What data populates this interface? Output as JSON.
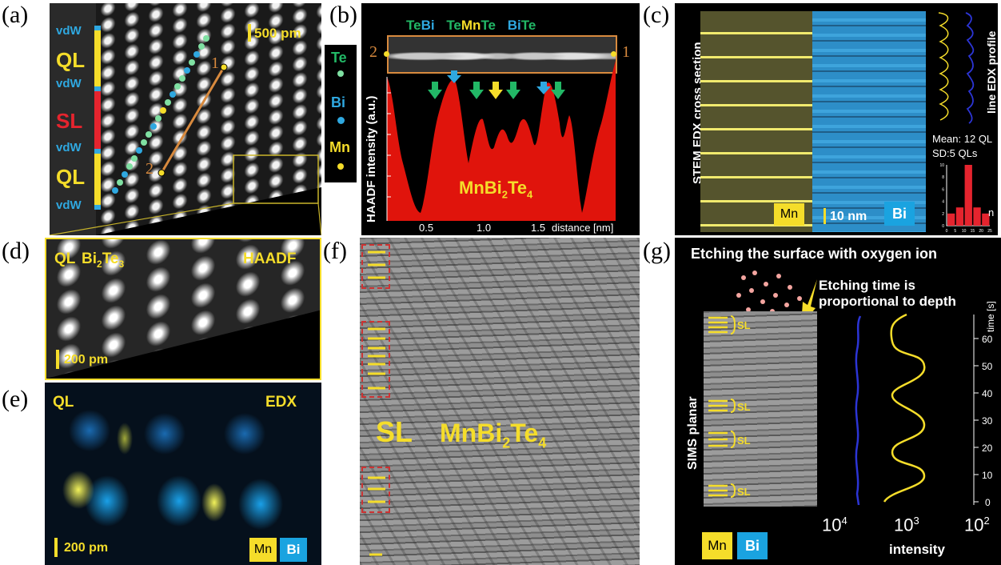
{
  "labels": {
    "a": "(a)",
    "b": "(b)",
    "c": "(c)",
    "d": "(d)",
    "e": "(e)",
    "f": "(f)",
    "g": "(g)"
  },
  "panel_a": {
    "layers": [
      {
        "text": "vdW",
        "kind": "vdw"
      },
      {
        "text": "QL",
        "kind": "ql"
      },
      {
        "text": "vdW",
        "kind": "vdw"
      },
      {
        "text": "SL",
        "kind": "sl"
      },
      {
        "text": "vdW",
        "kind": "vdw"
      },
      {
        "text": "QL",
        "kind": "ql"
      },
      {
        "text": "vdW",
        "kind": "vdw"
      }
    ],
    "scale_bar": "500 pm",
    "marker_1": "1",
    "marker_2": "2",
    "colors": {
      "ql": "#f5dd2a",
      "sl": "#e5242e",
      "vdw": "#2fa8e0"
    }
  },
  "legend": {
    "te": "Te",
    "bi": "Bi",
    "mn": "Mn"
  },
  "panel_b": {
    "atom_labels": [
      "Te",
      "Bi",
      "Te",
      "Mn",
      "Te",
      "Bi",
      "Te"
    ],
    "marker_left": "2",
    "marker_right": "1",
    "y_axis_label": "HAADF intensity (a.u.)",
    "x_ticks": [
      "0.5",
      "1.0",
      "1.5"
    ],
    "x_axis_label": "distance [nm]",
    "compound": "MnBi",
    "compound_sub1": "2",
    "compound_mid": "Te",
    "compound_sub2": "4"
  },
  "panel_c": {
    "vertical_title": "STEM EDX cross section",
    "mn_label": "Mn",
    "bi_label": "Bi",
    "scale_bar": "10 nm",
    "profile_label": "line EDX profile",
    "mean": "Mean: 12 QL",
    "sd": "SD:5 QLs",
    "hist_y_ticks": [
      "10",
      "8",
      "6",
      "4",
      "2",
      "0"
    ],
    "hist_x_ticks": [
      "0",
      "5",
      "10",
      "15",
      "20",
      "25"
    ],
    "hist_x_label": "n",
    "hist_values": [
      2,
      3,
      10,
      3,
      2
    ]
  },
  "panel_d": {
    "ql": "QL",
    "compound": "Bi",
    "sub1": "2",
    "compound_mid": "Te",
    "sub2": "3",
    "mode": "HAADF",
    "scale_bar": "200 pm"
  },
  "panel_e": {
    "ql": "QL",
    "mode": "EDX",
    "scale_bar": "200 pm",
    "mn": "Mn",
    "bi": "Bi"
  },
  "panel_f": {
    "sl": "SL",
    "compound": "MnBi",
    "sub1": "2",
    "compound_mid": "Te",
    "sub2": "4"
  },
  "panel_g": {
    "title": "Etching the surface with oxygen ion",
    "note_line1": "Etching time is",
    "note_line2": "proportional to depth",
    "vertical_label": "SIMS planar",
    "sl_labels": [
      "SL",
      "SL",
      "SL",
      "SL"
    ],
    "x_ticks": [
      "10",
      "10",
      "10"
    ],
    "x_exps": [
      "4",
      "3",
      "2"
    ],
    "x_axis_label": "intensity",
    "y_ticks": [
      "0",
      "10",
      "20",
      "30",
      "40",
      "50",
      "60"
    ],
    "y_axis_label": "time [s]",
    "mn": "Mn",
    "bi": "Bi"
  }
}
